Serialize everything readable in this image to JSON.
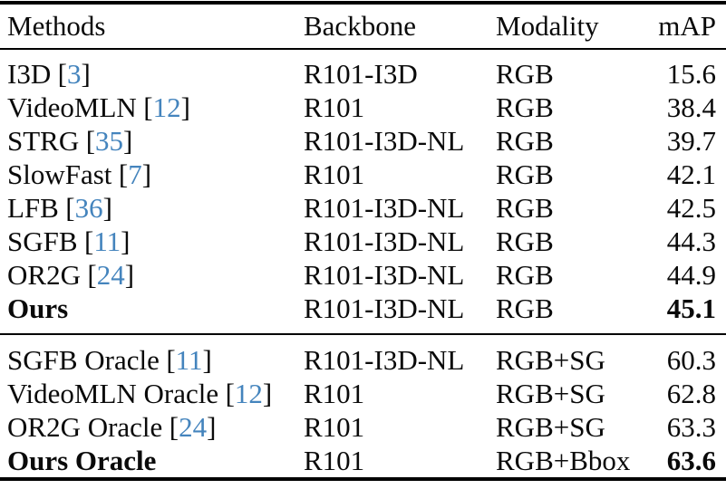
{
  "page": {
    "background_color": "#ffffff",
    "text_color": "#0a0a0a",
    "citation_color": "#4484bd"
  },
  "table": {
    "bracket_open": "[",
    "bracket_close": "]",
    "columns": [
      "Methods",
      "Backbone",
      "Modality",
      "mAP"
    ],
    "rows": [
      {
        "method": "I3D",
        "cite": "3",
        "backbone": "R101-I3D",
        "modality": "RGB",
        "map": "15.6"
      },
      {
        "method": "VideoMLN",
        "cite": "12",
        "backbone": "R101",
        "modality": "RGB",
        "map": "38.4"
      },
      {
        "method": "STRG",
        "cite": "35",
        "backbone": "R101-I3D-NL",
        "modality": "RGB",
        "map": "39.7"
      },
      {
        "method": "SlowFast",
        "cite": "7",
        "backbone": "R101",
        "modality": "RGB",
        "map": "42.1"
      },
      {
        "method": "LFB",
        "cite": "36",
        "backbone": "R101-I3D-NL",
        "modality": "RGB",
        "map": "42.5"
      },
      {
        "method": "SGFB",
        "cite": "11",
        "backbone": "R101-I3D-NL",
        "modality": "RGB",
        "map": "44.3"
      },
      {
        "method": "OR2G",
        "cite": "24",
        "backbone": "R101-I3D-NL",
        "modality": "RGB",
        "map": "44.9"
      },
      {
        "method": "Ours",
        "cite": "",
        "backbone": "R101-I3D-NL",
        "modality": "RGB",
        "map": "45.1"
      },
      {
        "method": "SGFB Oracle",
        "cite": "11",
        "backbone": "R101-I3D-NL",
        "modality": "RGB+SG",
        "map": "60.3"
      },
      {
        "method": "VideoMLN Oracle",
        "cite": "12",
        "backbone": "R101",
        "modality": "RGB+SG",
        "map": "62.8"
      },
      {
        "method": "OR2G Oracle",
        "cite": "24",
        "backbone": "R101",
        "modality": "RGB+SG",
        "map": "63.3"
      },
      {
        "method": "Ours Oracle",
        "cite": "",
        "backbone": "R101",
        "modality": "RGB+Bbox",
        "map": "63.6"
      }
    ]
  }
}
